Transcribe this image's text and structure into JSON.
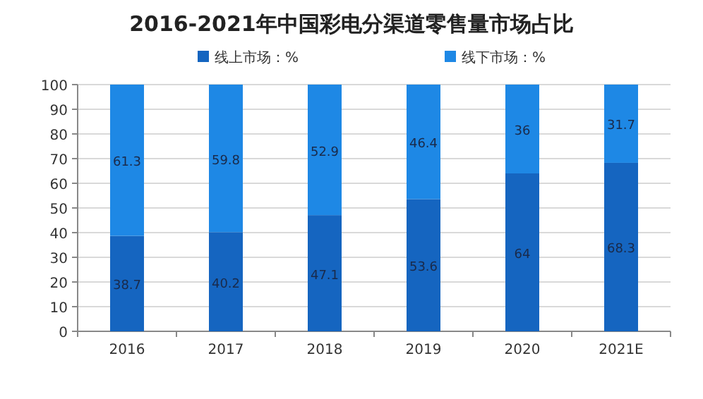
{
  "chart_data": {
    "type": "bar",
    "stacked": true,
    "title": "2016-2021年中国彩电分渠道零售量市场占比",
    "categories": [
      "2016",
      "2017",
      "2018",
      "2019",
      "2020",
      "2021E"
    ],
    "series": [
      {
        "name": "线上市场：%",
        "color": "#1565c0",
        "values": [
          38.7,
          40.2,
          47.1,
          53.6,
          64,
          68.3
        ]
      },
      {
        "name": "线下市场：%",
        "color": "#1e88e5",
        "values": [
          61.3,
          59.8,
          52.9,
          46.4,
          36,
          31.7
        ]
      }
    ],
    "ylim": [
      0,
      100
    ],
    "yticks": [
      0,
      10,
      20,
      30,
      40,
      50,
      60,
      70,
      80,
      90,
      100
    ],
    "grid": "y",
    "legend": "top",
    "data_labels": true
  }
}
